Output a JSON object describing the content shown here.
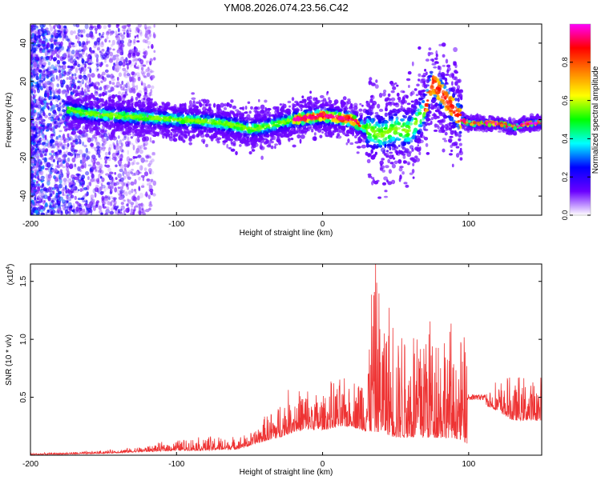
{
  "title": "YM08.2026.074.23.56.C42",
  "chart_data": [
    {
      "type": "heatmap",
      "name": "spectrogram",
      "xlabel": "Height of straight line (km)",
      "ylabel": "Frequency (Hz)",
      "xlim": [
        -200,
        150
      ],
      "ylim": [
        -50,
        50
      ],
      "xticks": [
        -200,
        -100,
        0,
        100
      ],
      "yticks": [
        -40,
        -20,
        0,
        20,
        40
      ],
      "colorbar": {
        "label": "Normalized spectral amplitude",
        "range": [
          0,
          1
        ],
        "ticks": [
          "0.0",
          "0.2",
          "0.4",
          "0.6",
          "0.8"
        ],
        "colors": [
          "#ffffff",
          "#6a00ff",
          "#0000ff",
          "#00ffff",
          "#00ff00",
          "#ffff00",
          "#ff8000",
          "#ff0000",
          "#ff00ff"
        ]
      },
      "ridge": {
        "x": [
          -180,
          -160,
          -140,
          -120,
          -100,
          -80,
          -60,
          -50,
          -40,
          -30,
          -20,
          -10,
          0,
          10,
          20,
          30,
          40,
          50,
          60,
          70,
          75,
          80,
          85,
          90,
          95,
          100,
          110,
          120,
          130,
          140,
          150
        ],
        "y": [
          6,
          3,
          2,
          1,
          0,
          -1,
          -3,
          -5,
          -4,
          -2,
          0,
          1,
          2,
          1,
          0,
          -5,
          -8,
          -5,
          -6,
          5,
          20,
          15,
          10,
          5,
          0,
          -2,
          -2,
          -2,
          -4,
          -2,
          -2
        ]
      }
    },
    {
      "type": "line",
      "name": "snr",
      "xlabel": "Height of straight line (km)",
      "ylabel": "SNR (10 * v/v)",
      "y_multiplier": "(x10",
      "y_multiplier_exp": "4",
      "y_multiplier_close": ")",
      "xlim": [
        -200,
        150
      ],
      "ylim": [
        0,
        1.65
      ],
      "xticks": [
        -200,
        -100,
        0,
        100
      ],
      "yticks": [
        0.5,
        1.0,
        1.5
      ],
      "color": "#ee3333",
      "envelope": {
        "x": [
          -200,
          -180,
          -160,
          -140,
          -120,
          -100,
          -80,
          -60,
          -50,
          -40,
          -30,
          -20,
          -10,
          0,
          10,
          20,
          30,
          35,
          40,
          50,
          60,
          70,
          80,
          90,
          99,
          100,
          110,
          120,
          130,
          140,
          150
        ],
        "base": [
          0.005,
          0.008,
          0.012,
          0.02,
          0.03,
          0.04,
          0.04,
          0.05,
          0.08,
          0.12,
          0.15,
          0.2,
          0.22,
          0.22,
          0.24,
          0.25,
          0.2,
          0.2,
          0.2,
          0.15,
          0.15,
          0.15,
          0.15,
          0.15,
          0.1,
          0.5,
          0.44,
          0.38,
          0.3,
          0.3,
          0.3
        ],
        "amp": [
          0.01,
          0.015,
          0.02,
          0.03,
          0.05,
          0.09,
          0.12,
          0.1,
          0.1,
          0.2,
          0.3,
          0.38,
          0.35,
          0.32,
          0.4,
          0.35,
          0.65,
          1.6,
          1.1,
          1.1,
          0.95,
          1.3,
          1.0,
          0.9,
          0.85,
          0.04,
          0.12,
          0.25,
          0.35,
          0.35,
          0.35
        ]
      }
    }
  ]
}
